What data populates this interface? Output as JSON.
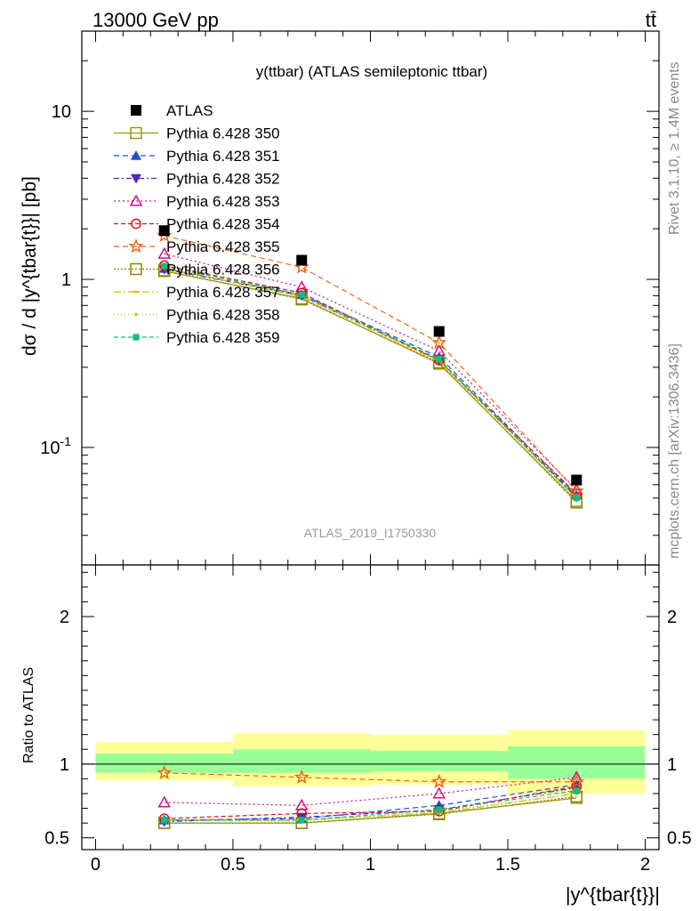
{
  "header": {
    "left": "13000 GeV pp",
    "right": "tt̄"
  },
  "side_labels": {
    "rivet": "Rivet 3.1.10, ≥ 1.4M events",
    "mcplots": "mcplots.cern.ch [arXiv:1306.3436]"
  },
  "chart_data": [
    {
      "type": "line",
      "panel": "main",
      "title": "y(ttbar) (ATLAS semileptonic ttbar)",
      "watermark": "ATLAS_2019_I1750330",
      "ylabel": "dσ / d |y^{tbar{t}}| [pb]",
      "yscale": "log",
      "ylim": [
        0.02,
        30
      ],
      "xlim": [
        -0.05,
        2.05
      ],
      "ytick_labels": [
        "10",
        "1",
        "10^{-1}"
      ],
      "legend_position": "top-left",
      "x": [
        0.25,
        0.75,
        1.25,
        1.75
      ],
      "series": [
        {
          "name": "ATLAS",
          "color": "#000000",
          "marker": "square-filled",
          "dash": "",
          "values": [
            1.95,
            1.3,
            0.49,
            0.064
          ]
        },
        {
          "name": "Pythia 6.428 350",
          "color": "#999900",
          "marker": "square-open",
          "dash": "",
          "values": [
            1.12,
            0.77,
            0.315,
            0.048
          ]
        },
        {
          "name": "Pythia 6.428 351",
          "color": "#1f4fd0",
          "marker": "triangle-filled",
          "dash": "6,4",
          "values": [
            1.16,
            0.81,
            0.345,
            0.052
          ]
        },
        {
          "name": "Pythia 6.428 352",
          "color": "#5522bb",
          "marker": "triangle-down-filled",
          "dash": "6,3,2,3",
          "values": [
            1.15,
            0.8,
            0.33,
            0.051
          ]
        },
        {
          "name": "Pythia 6.428 353",
          "color": "#cc1188",
          "marker": "triangle-open",
          "dash": "2,3",
          "values": [
            1.42,
            0.9,
            0.375,
            0.056
          ]
        },
        {
          "name": "Pythia 6.428 354",
          "color": "#dd1111",
          "marker": "circle-open",
          "dash": "5,3",
          "values": [
            1.21,
            0.83,
            0.33,
            0.053
          ]
        },
        {
          "name": "Pythia 6.428 355",
          "color": "#ee6611",
          "marker": "star-open",
          "dash": "6,4",
          "values": [
            1.82,
            1.18,
            0.42,
            0.055
          ]
        },
        {
          "name": "Pythia 6.428 356",
          "color": "#888800",
          "marker": "square-open",
          "dash": "2,2",
          "values": [
            1.13,
            0.76,
            0.32,
            0.047
          ]
        },
        {
          "name": "Pythia 6.428 357",
          "color": "#ddbb00",
          "marker": "dash",
          "dash": "8,3,2,3",
          "values": [
            1.17,
            0.79,
            0.325,
            0.05
          ]
        },
        {
          "name": "Pythia 6.428 358",
          "color": "#aacc00",
          "marker": "dot",
          "dash": "1,3",
          "values": [
            1.18,
            0.8,
            0.33,
            0.049
          ]
        },
        {
          "name": "Pythia 6.428 359",
          "color": "#11bb88",
          "marker": "square-filled-small",
          "dash": "5,3",
          "values": [
            1.2,
            0.81,
            0.335,
            0.05
          ]
        }
      ]
    },
    {
      "type": "line",
      "panel": "ratio",
      "ylabel": "Ratio to ATLAS",
      "xlabel": "|y^{tbar{t}}|",
      "ylim": [
        0.42,
        2.35
      ],
      "xlim": [
        -0.05,
        2.05
      ],
      "xtick_labels": [
        "0",
        "0.5",
        "1",
        "1.5",
        "2"
      ],
      "ytick_labels": [
        "0.5",
        "1",
        "2"
      ],
      "reference_line": 1,
      "bands": {
        "edges": [
          0,
          0.5,
          1,
          1.5,
          2
        ],
        "stat_low": [
          0.94,
          0.94,
          0.95,
          0.9
        ],
        "stat_high": [
          1.07,
          1.1,
          1.09,
          1.12
        ],
        "total_low": [
          0.89,
          0.85,
          0.86,
          0.8
        ],
        "total_high": [
          1.15,
          1.21,
          1.2,
          1.23
        ],
        "stat_color": "#99ff99",
        "total_color": "#ffff99"
      },
      "x": [
        0.25,
        0.75,
        1.25,
        1.75
      ],
      "series": [
        {
          "name": "Pythia 6.428 350",
          "values": [
            0.6,
            0.6,
            0.665,
            0.77
          ]
        },
        {
          "name": "Pythia 6.428 351",
          "values": [
            0.62,
            0.63,
            0.72,
            0.86
          ]
        },
        {
          "name": "Pythia 6.428 352",
          "values": [
            0.61,
            0.64,
            0.69,
            0.84
          ]
        },
        {
          "name": "Pythia 6.428 353",
          "values": [
            0.74,
            0.72,
            0.8,
            0.91
          ]
        },
        {
          "name": "Pythia 6.428 354",
          "values": [
            0.63,
            0.665,
            0.68,
            0.85
          ]
        },
        {
          "name": "Pythia 6.428 355",
          "values": [
            0.94,
            0.91,
            0.88,
            0.88
          ]
        },
        {
          "name": "Pythia 6.428 356",
          "values": [
            0.6,
            0.6,
            0.66,
            0.78
          ]
        },
        {
          "name": "Pythia 6.428 357",
          "values": [
            0.62,
            0.62,
            0.67,
            0.8
          ]
        },
        {
          "name": "Pythia 6.428 358",
          "values": [
            0.62,
            0.61,
            0.68,
            0.8
          ]
        },
        {
          "name": "Pythia 6.428 359",
          "values": [
            0.62,
            0.62,
            0.69,
            0.82
          ]
        }
      ]
    }
  ]
}
